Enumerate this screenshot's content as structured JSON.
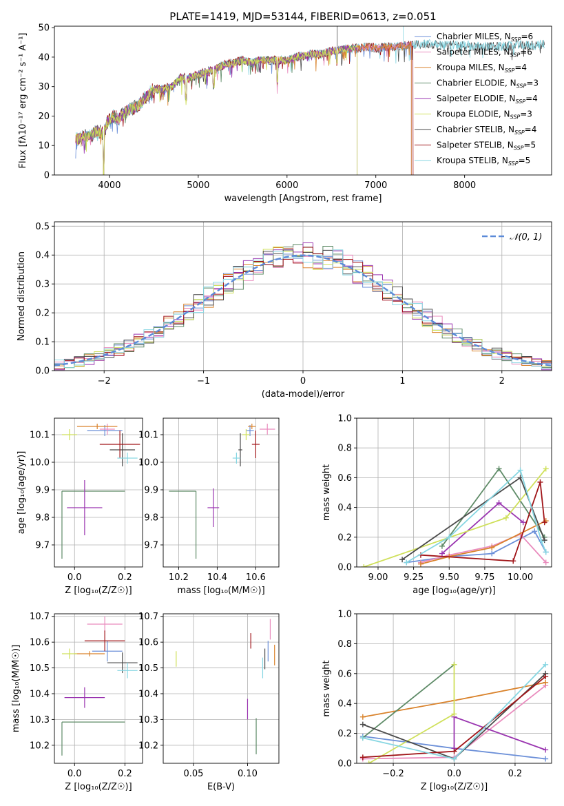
{
  "colors": {
    "Chabrier MILES": "#6b8fd8",
    "Salpeter MILES": "#e98bbd",
    "Kroupa MILES": "#d9822b",
    "Chabrier ELODIE": "#5d8a66",
    "Salpeter ELODIE": "#9a35b0",
    "Kroupa ELODIE": "#cfe05a",
    "Chabrier STELIB": "#4a4a4a",
    "Salpeter STELIB": "#a01418",
    "Kroupa STELIB": "#86d6e2",
    "normal": "#5b8ad8"
  },
  "chart_data": [
    {
      "id": "spectrum",
      "type": "line",
      "title": "PLATE=1419, MJD=53144, FIBERID=0613, z=0.051",
      "xlabel": "wavelength [Angstrom, rest frame]",
      "ylabel": "Flux [fλ10⁻¹⁷ erg cm⁻² s⁻¹ A⁻¹]",
      "xlim": [
        3380,
        8980
      ],
      "ylim": [
        0,
        50.5
      ],
      "xticks": [
        4000,
        5000,
        6000,
        7000,
        8000
      ],
      "yticks": [
        0,
        10,
        20,
        30,
        40,
        50
      ],
      "legend": "right",
      "legend_entries": [
        {
          "label": "Chabrier MILES, N",
          "sub": "SSP",
          "value": "=6",
          "model": "Chabrier MILES"
        },
        {
          "label": "Salpeter MILES, N",
          "sub": "SSP",
          "value": "=6",
          "model": "Salpeter MILES"
        },
        {
          "label": "Kroupa MILES, N",
          "sub": "SSP",
          "value": "=4",
          "model": "Kroupa MILES"
        },
        {
          "label": "Chabrier ELODIE, N",
          "sub": "SSP",
          "value": "=3",
          "model": "Chabrier ELODIE"
        },
        {
          "label": "Salpeter ELODIE, N",
          "sub": "SSP",
          "value": "=4",
          "model": "Salpeter ELODIE"
        },
        {
          "label": "Kroupa ELODIE, N",
          "sub": "SSP",
          "value": "=3",
          "model": "Kroupa ELODIE"
        },
        {
          "label": "Chabrier STELIB, N",
          "sub": "SSP",
          "value": "=4",
          "model": "Chabrier STELIB"
        },
        {
          "label": "Salpeter STELIB, N",
          "sub": "SSP",
          "value": "=5",
          "model": "Salpeter STELIB"
        },
        {
          "label": "Kroupa STELIB, N",
          "sub": "SSP",
          "value": "=5",
          "model": "Kroupa STELIB"
        }
      ],
      "continuum": [
        [
          3620,
          12
        ],
        [
          3700,
          13
        ],
        [
          3800,
          13.5
        ],
        [
          3860,
          15
        ],
        [
          3930,
          14
        ],
        [
          3980,
          18
        ],
        [
          4050,
          20
        ],
        [
          4100,
          19
        ],
        [
          4200,
          22
        ],
        [
          4300,
          23
        ],
        [
          4400,
          26
        ],
        [
          4500,
          29
        ],
        [
          4600,
          29
        ],
        [
          4700,
          30
        ],
        [
          4800,
          33
        ],
        [
          4900,
          33
        ],
        [
          5000,
          34
        ],
        [
          5100,
          35
        ],
        [
          5200,
          36
        ],
        [
          5300,
          37.5
        ],
        [
          5400,
          38
        ],
        [
          5500,
          39
        ],
        [
          5600,
          38
        ],
        [
          5700,
          39
        ],
        [
          5800,
          39
        ],
        [
          5900,
          39
        ],
        [
          6000,
          39
        ],
        [
          6100,
          40
        ],
        [
          6200,
          40.5
        ],
        [
          6300,
          41
        ],
        [
          6400,
          41
        ],
        [
          6500,
          42
        ],
        [
          6600,
          42.5
        ],
        [
          6700,
          43
        ],
        [
          6800,
          43
        ],
        [
          6900,
          43.5
        ],
        [
          7000,
          43
        ],
        [
          7100,
          43.5
        ],
        [
          7200,
          43.5
        ],
        [
          7300,
          44
        ],
        [
          7400,
          44
        ],
        [
          7600,
          44.5
        ],
        [
          7800,
          44
        ],
        [
          8000,
          44
        ],
        [
          8200,
          43.5
        ],
        [
          8400,
          43.5
        ],
        [
          8600,
          44
        ],
        [
          8800,
          44
        ],
        [
          8900,
          44.5
        ]
      ],
      "absorption_dips": [
        [
          3934,
          0.0
        ],
        [
          4861,
          0.8
        ],
        [
          5175,
          0.85
        ],
        [
          5890,
          0.8
        ],
        [
          6563,
          0.9
        ]
      ],
      "model_ranges": [
        {
          "model": "Chabrier MILES",
          "xmax": 7400
        },
        {
          "model": "Salpeter MILES",
          "xmax": 7400
        },
        {
          "model": "Kroupa MILES",
          "xmax": 7400
        },
        {
          "model": "Chabrier ELODIE",
          "xmax": 6790
        },
        {
          "model": "Salpeter ELODIE",
          "xmax": 6790
        },
        {
          "model": "Kroupa ELODIE",
          "xmax": 6790
        },
        {
          "model": "Chabrier STELIB",
          "xmax": 8900
        },
        {
          "model": "Salpeter STELIB",
          "xmax": 7420
        },
        {
          "model": "Kroupa STELIB",
          "xmax": 8900
        }
      ]
    },
    {
      "id": "residuals",
      "type": "histogram",
      "xlabel": "(data-model)/error",
      "ylabel": "Normed distribution",
      "xlim": [
        -2.5,
        2.5
      ],
      "ylim": [
        0,
        0.515
      ],
      "xticks": [
        -2,
        -1,
        0,
        1,
        2
      ],
      "yticks": [
        0,
        0.1,
        0.2,
        0.3,
        0.4,
        0.5
      ],
      "grid": true,
      "legend": "top-right",
      "legend_label": "𝒩(0, 1)",
      "bin_width": 0.1,
      "bin_start": -2.5,
      "jitter_amplitude": 0.045
    },
    {
      "id": "age-vs-Z",
      "type": "errorbar",
      "xlabel": "Z [log₁₀(Z/Z☉)]",
      "ylabel": "age  [log₁₀(age/yr)]",
      "xlim": [
        -0.08,
        0.27
      ],
      "ylim": [
        9.62,
        10.16
      ],
      "xticks": [
        0.0,
        0.2
      ],
      "yticks": [
        9.7,
        9.8,
        9.9,
        10.0,
        10.1
      ],
      "grid": true,
      "points": [
        {
          "model": "Chabrier MILES",
          "x": 0.12,
          "y": 10.115,
          "xerr": 0.07,
          "yerr": 0.02
        },
        {
          "model": "Salpeter MILES",
          "x": 0.13,
          "y": 10.12,
          "xerr": 0.03,
          "yerr": 0.02
        },
        {
          "model": "Kroupa MILES",
          "x": 0.09,
          "y": 10.13,
          "xerr": 0.08,
          "yerr": 0.01
        },
        {
          "model": "Chabrier ELODIE",
          "x": -0.05,
          "y": 9.895,
          "xerr": 0.0,
          "yerr": 0.0
        },
        {
          "model": "Salpeter ELODIE",
          "x": 0.04,
          "y": 9.835,
          "xerr": 0.07,
          "yerr": 0.1
        },
        {
          "model": "Kroupa ELODIE",
          "x": -0.02,
          "y": 10.1,
          "xerr": 0.03,
          "yerr": 0.02
        },
        {
          "model": "Chabrier STELIB",
          "x": 0.19,
          "y": 10.045,
          "xerr": 0.05,
          "yerr": 0.06
        },
        {
          "model": "Salpeter STELIB",
          "x": 0.18,
          "y": 10.065,
          "xerr": 0.08,
          "yerr": 0.05
        },
        {
          "model": "Kroupa STELIB",
          "x": 0.21,
          "y": 10.015,
          "xerr": 0.04,
          "yerr": 0.02
        }
      ],
      "special": [
        {
          "model": "Chabrier ELODIE",
          "segments": [
            [
              -0.05,
              9.895,
              0.2,
              9.895
            ],
            [
              -0.05,
              9.65,
              -0.05,
              9.895
            ]
          ]
        }
      ]
    },
    {
      "id": "age-vs-mass",
      "type": "errorbar",
      "xlabel": "mass [log₁₀(M/M☉)]",
      "ylabel": "",
      "xlim": [
        10.12,
        10.72
      ],
      "ylim": [
        9.62,
        10.16
      ],
      "xticks": [
        10.2,
        10.4,
        10.6
      ],
      "yticks": [
        9.7,
        9.8,
        9.9,
        10.0,
        10.1
      ],
      "grid": true,
      "points": [
        {
          "model": "Chabrier MILES",
          "x": 10.57,
          "y": 10.115,
          "xerr": 0.02,
          "yerr": 0.02
        },
        {
          "model": "Salpeter MILES",
          "x": 10.66,
          "y": 10.12,
          "xerr": 0.04,
          "yerr": 0.02
        },
        {
          "model": "Kroupa MILES",
          "x": 10.58,
          "y": 10.13,
          "xerr": 0.02,
          "yerr": 0.01
        },
        {
          "model": "Chabrier ELODIE",
          "x": 10.29,
          "y": 9.895,
          "xerr": 0.0,
          "yerr": 0.0
        },
        {
          "model": "Salpeter ELODIE",
          "x": 10.38,
          "y": 9.835,
          "xerr": 0.03,
          "yerr": 0.07
        },
        {
          "model": "Kroupa ELODIE",
          "x": 10.55,
          "y": 10.1,
          "xerr": 0.02,
          "yerr": 0.02
        },
        {
          "model": "Chabrier STELIB",
          "x": 10.52,
          "y": 10.045,
          "xerr": 0.01,
          "yerr": 0.06
        },
        {
          "model": "Salpeter STELIB",
          "x": 10.6,
          "y": 10.065,
          "xerr": 0.02,
          "yerr": 0.05
        },
        {
          "model": "Kroupa STELIB",
          "x": 10.5,
          "y": 10.015,
          "xerr": 0.02,
          "yerr": 0.02
        }
      ],
      "special": [
        {
          "model": "Chabrier ELODIE",
          "segments": [
            [
              10.15,
              9.895,
              10.29,
              9.895
            ],
            [
              10.29,
              9.65,
              10.29,
              9.895
            ]
          ]
        }
      ]
    },
    {
      "id": "mass-weight-vs-age",
      "type": "line",
      "xlabel": "age  [log₁₀(age/yr)]",
      "ylabel": "mass weight",
      "xlim": [
        8.85,
        10.22
      ],
      "ylim": [
        0,
        1.0
      ],
      "xticks": [
        9.0,
        9.25,
        9.5,
        9.75,
        10.0
      ],
      "yticks": [
        0.0,
        0.2,
        0.4,
        0.6,
        0.8,
        1.0
      ],
      "grid": true,
      "series": [
        {
          "model": "Chabrier MILES",
          "x": [
            9.2,
            9.5,
            9.8,
            10.1,
            10.18
          ],
          "y": [
            0.03,
            0.07,
            0.09,
            0.24,
            0.1
          ]
        },
        {
          "model": "Salpeter MILES",
          "x": [
            9.3,
            9.5,
            9.8,
            10.0,
            10.18
          ],
          "y": [
            0.03,
            0.08,
            0.14,
            0.22,
            0.03
          ]
        },
        {
          "model": "Kroupa MILES",
          "x": [
            9.3,
            9.5,
            9.8,
            10.18
          ],
          "y": [
            0.02,
            0.07,
            0.13,
            0.31
          ]
        },
        {
          "model": "Chabrier ELODIE",
          "x": [
            9.45,
            9.85,
            10.17
          ],
          "y": [
            0.14,
            0.66,
            0.2
          ]
        },
        {
          "model": "Salpeter ELODIE",
          "x": [
            9.45,
            9.85,
            10.02
          ],
          "y": [
            0.09,
            0.43,
            0.3
          ]
        },
        {
          "model": "Kroupa ELODIE",
          "x": [
            8.9,
            9.9,
            10.18
          ],
          "y": [
            0.0,
            0.33,
            0.66
          ]
        },
        {
          "model": "Chabrier STELIB",
          "x": [
            9.17,
            10.0,
            10.17
          ],
          "y": [
            0.05,
            0.6,
            0.18
          ]
        },
        {
          "model": "Salpeter STELIB",
          "x": [
            9.3,
            9.95,
            10.14,
            10.17
          ],
          "y": [
            0.08,
            0.04,
            0.57,
            0.3
          ]
        },
        {
          "model": "Kroupa STELIB",
          "x": [
            9.2,
            9.5,
            10.0,
            10.15,
            10.18
          ],
          "y": [
            0.03,
            0.2,
            0.65,
            0.17,
            0.1
          ]
        }
      ]
    },
    {
      "id": "mass-vs-Z",
      "type": "errorbar",
      "xlabel": "Z [log₁₀(Z/Z☉)]",
      "ylabel": "mass [log₁₀(M/M☉)]",
      "xlim": [
        -0.08,
        0.27
      ],
      "ylim": [
        10.13,
        10.71
      ],
      "xticks": [
        0.0,
        0.2
      ],
      "yticks": [
        10.2,
        10.3,
        10.4,
        10.5,
        10.6,
        10.7
      ],
      "grid": true,
      "points": [
        {
          "model": "Chabrier MILES",
          "x": 0.13,
          "y": 10.565,
          "xerr": 0.06,
          "yerr": 0.04
        },
        {
          "model": "Salpeter MILES",
          "x": 0.12,
          "y": 10.67,
          "xerr": 0.07,
          "yerr": 0.03
        },
        {
          "model": "Kroupa MILES",
          "x": 0.06,
          "y": 10.555,
          "xerr": 0.06,
          "yerr": 0.01
        },
        {
          "model": "Chabrier ELODIE",
          "x": -0.05,
          "y": 10.29,
          "xerr": 0.0,
          "yerr": 0.0
        },
        {
          "model": "Salpeter ELODIE",
          "x": 0.04,
          "y": 10.385,
          "xerr": 0.08,
          "yerr": 0.04
        },
        {
          "model": "Kroupa ELODIE",
          "x": -0.02,
          "y": 10.555,
          "xerr": 0.03,
          "yerr": 0.02
        },
        {
          "model": "Chabrier STELIB",
          "x": 0.19,
          "y": 10.52,
          "xerr": 0.06,
          "yerr": 0.04
        },
        {
          "model": "Salpeter STELIB",
          "x": 0.12,
          "y": 10.605,
          "xerr": 0.08,
          "yerr": 0.04
        },
        {
          "model": "Kroupa STELIB",
          "x": 0.21,
          "y": 10.49,
          "xerr": 0.04,
          "yerr": 0.03
        }
      ],
      "special": [
        {
          "model": "Chabrier ELODIE",
          "segments": [
            [
              -0.05,
              10.29,
              0.2,
              10.29
            ],
            [
              -0.05,
              10.16,
              -0.05,
              10.29
            ]
          ]
        }
      ]
    },
    {
      "id": "mass-vs-EBV",
      "type": "errorbar",
      "xlabel": "E(B-V)",
      "ylabel": "",
      "xlim": [
        0.022,
        0.129
      ],
      "ylim": [
        10.13,
        10.71
      ],
      "xticks": [
        0.05,
        0.1
      ],
      "yticks": [
        10.2,
        10.3,
        10.4,
        10.5,
        10.6,
        10.7
      ],
      "grid": true,
      "points": [
        {
          "model": "Chabrier MILES",
          "x": 0.119,
          "y": 10.565,
          "xerr": 0,
          "yerr": 0.04
        },
        {
          "model": "Salpeter MILES",
          "x": 0.121,
          "y": 10.65,
          "xerr": 0,
          "yerr": 0.04
        },
        {
          "model": "Kroupa MILES",
          "x": 0.125,
          "y": 10.55,
          "xerr": 0,
          "yerr": 0.04
        },
        {
          "model": "Chabrier ELODIE",
          "x": 0.108,
          "y": 10.235,
          "xerr": 0,
          "yerr": 0.07
        },
        {
          "model": "Salpeter ELODIE",
          "x": 0.1,
          "y": 10.34,
          "xerr": 0,
          "yerr": 0.04
        },
        {
          "model": "Kroupa ELODIE",
          "x": 0.034,
          "y": 10.535,
          "xerr": 0,
          "yerr": 0.03
        },
        {
          "model": "Chabrier STELIB",
          "x": 0.116,
          "y": 10.535,
          "xerr": 0,
          "yerr": 0.04
        },
        {
          "model": "Salpeter STELIB",
          "x": 0.103,
          "y": 10.605,
          "xerr": 0,
          "yerr": 0.03
        },
        {
          "model": "Kroupa STELIB",
          "x": 0.114,
          "y": 10.5,
          "xerr": 0,
          "yerr": 0.04
        }
      ]
    },
    {
      "id": "mass-weight-vs-Z",
      "type": "line",
      "xlabel": "Z [log₁₀(Z/Z☉)]",
      "ylabel": "mass weight",
      "xlim": [
        -0.32,
        0.32
      ],
      "ylim": [
        0,
        1.0
      ],
      "xticks": [
        -0.2,
        0.0,
        0.2
      ],
      "yticks": [
        0.0,
        0.2,
        0.4,
        0.6,
        0.8,
        1.0
      ],
      "grid": true,
      "series": [
        {
          "model": "Chabrier MILES",
          "x": [
            -0.3,
            0.0,
            0.3
          ],
          "y": [
            0.18,
            0.1,
            0.03
          ]
        },
        {
          "model": "Salpeter MILES",
          "x": [
            -0.3,
            0.0,
            0.3
          ],
          "y": [
            0.03,
            0.04,
            0.52
          ]
        },
        {
          "model": "Kroupa MILES",
          "x": [
            -0.3,
            0.0,
            0.3
          ],
          "y": [
            0.31,
            0.42,
            0.54
          ]
        },
        {
          "model": "Chabrier ELODIE",
          "x": [
            -0.3,
            0.0
          ],
          "y": [
            0.17,
            0.66
          ]
        },
        {
          "model": "Salpeter ELODIE",
          "x": [
            0.0,
            0.0,
            0.3
          ],
          "y": [
            0.1,
            0.31,
            0.09
          ]
        },
        {
          "model": "Kroupa ELODIE",
          "x": [
            -0.28,
            0.0,
            0.0
          ],
          "y": [
            0.0,
            0.33,
            0.66
          ]
        },
        {
          "model": "Chabrier STELIB",
          "x": [
            -0.3,
            0.0,
            0.3
          ],
          "y": [
            0.26,
            0.03,
            0.6
          ]
        },
        {
          "model": "Salpeter STELIB",
          "x": [
            -0.3,
            0.0,
            0.3
          ],
          "y": [
            0.04,
            0.08,
            0.58
          ]
        },
        {
          "model": "Kroupa STELIB",
          "x": [
            -0.3,
            0.0,
            0.3
          ],
          "y": [
            0.17,
            0.03,
            0.66
          ]
        }
      ]
    }
  ]
}
